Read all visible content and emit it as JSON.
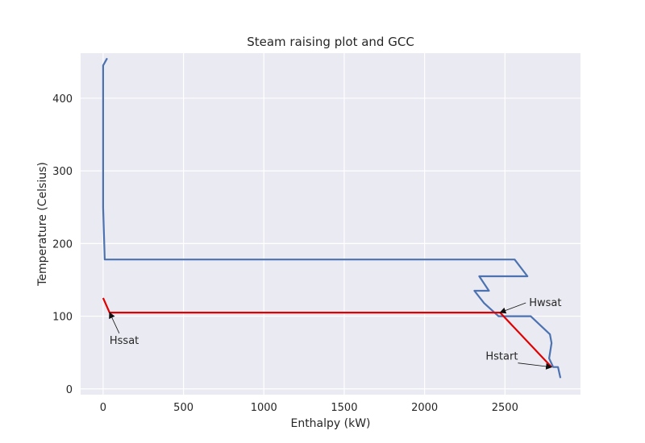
{
  "chart_data": {
    "type": "line",
    "title": "Steam raising plot and GCC",
    "xlabel": "Enthalpy (kW)",
    "ylabel": "Temperature (Celsius)",
    "xlim": [
      -140,
      2970
    ],
    "ylim": [
      -8,
      462
    ],
    "xticks": [
      0,
      500,
      1000,
      1500,
      2000,
      2500
    ],
    "yticks": [
      0,
      100,
      200,
      300,
      400
    ],
    "grid": true,
    "background": "#eaeaf2",
    "series": [
      {
        "color": "#4c72b0",
        "points": [
          [
            25,
            455
          ],
          [
            0,
            445
          ],
          [
            0,
            250
          ],
          [
            10,
            178
          ],
          [
            2560,
            178
          ],
          [
            2640,
            155
          ],
          [
            2340,
            155
          ],
          [
            2400,
            135
          ],
          [
            2310,
            135
          ],
          [
            2370,
            118
          ],
          [
            2460,
            100
          ],
          [
            2660,
            100
          ],
          [
            2780,
            75
          ],
          [
            2790,
            63
          ],
          [
            2775,
            42
          ],
          [
            2800,
            30
          ],
          [
            2830,
            30
          ],
          [
            2845,
            15
          ]
        ]
      },
      {
        "color": "#e00000",
        "points": [
          [
            0,
            125
          ],
          [
            40,
            105
          ],
          [
            2470,
            105
          ],
          [
            2790,
            30
          ]
        ]
      }
    ],
    "annotations": [
      {
        "text": "Hssat",
        "point": [
          40,
          105
        ],
        "text_at": [
          40,
          62
        ]
      },
      {
        "text": "Hwsat",
        "point": [
          2470,
          105
        ],
        "text_at": [
          2650,
          114
        ]
      },
      {
        "text": "Hstart",
        "point": [
          2790,
          30
        ],
        "text_at": [
          2380,
          40
        ]
      }
    ]
  }
}
